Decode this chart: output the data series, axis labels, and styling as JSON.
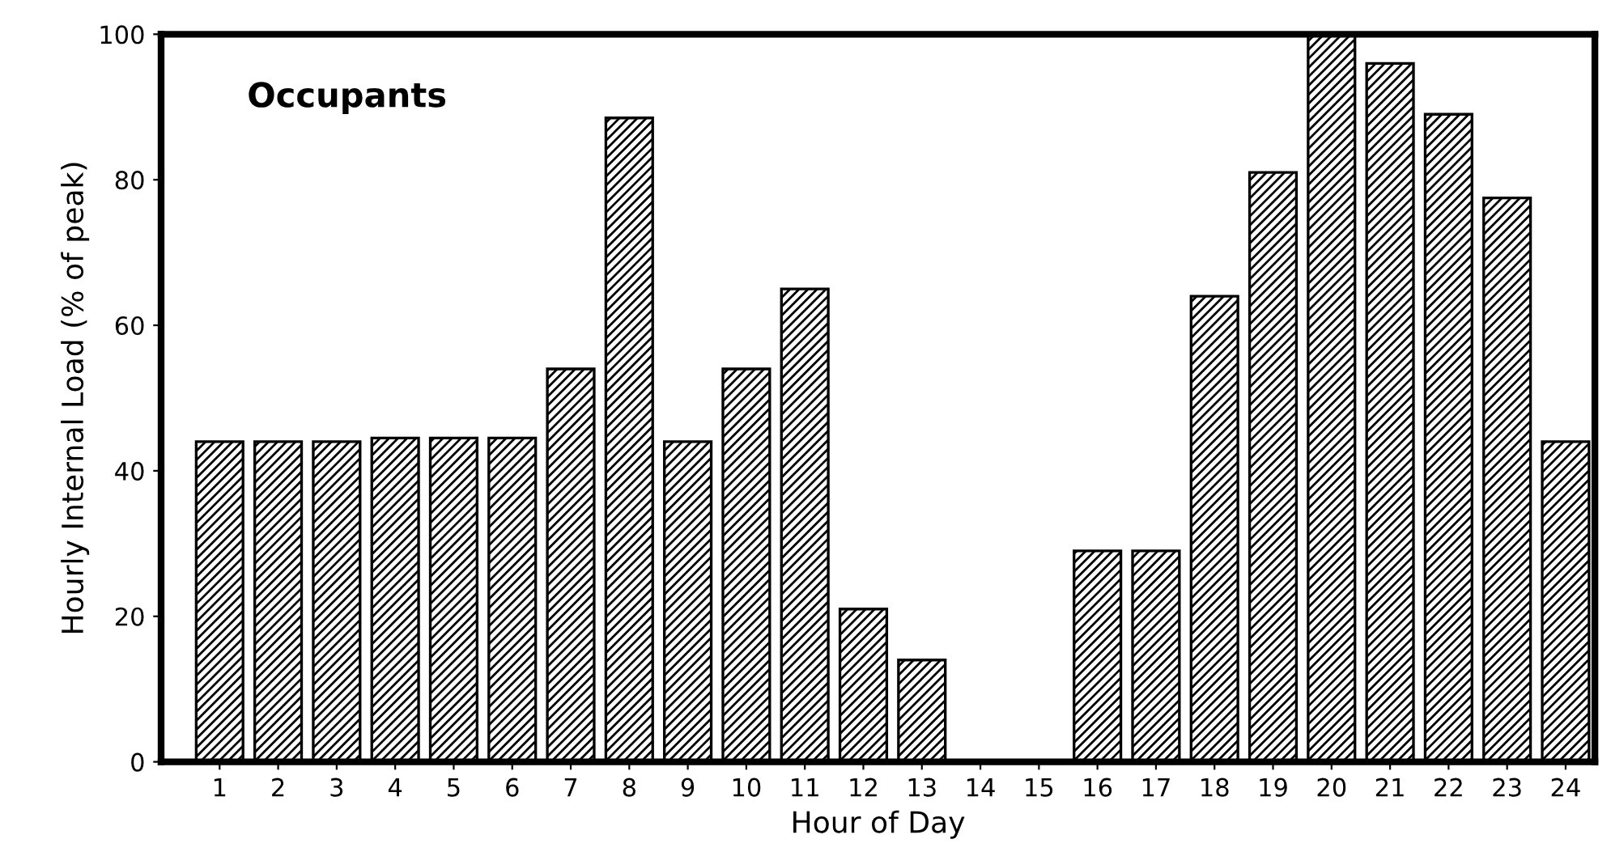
{
  "chart_data": {
    "type": "bar",
    "annotations": [
      "Occupants"
    ],
    "xlabel": "Hour of Day",
    "ylabel": "Hourly Internal Load (% of peak)",
    "categories": [
      "1",
      "2",
      "3",
      "4",
      "5",
      "6",
      "7",
      "8",
      "9",
      "10",
      "11",
      "12",
      "13",
      "14",
      "15",
      "16",
      "17",
      "18",
      "19",
      "20",
      "21",
      "22",
      "23",
      "24"
    ],
    "values": [
      44,
      44,
      44,
      44.5,
      44.5,
      44.5,
      54,
      88.5,
      44,
      54,
      65,
      21,
      14,
      0,
      0,
      29,
      29,
      64,
      81,
      100,
      96,
      89,
      77.5,
      44
    ],
    "color": "#000000",
    "ylim": [
      0,
      100
    ],
    "yticks": [
      0,
      20,
      40,
      60,
      80,
      100
    ],
    "grid": false
  }
}
